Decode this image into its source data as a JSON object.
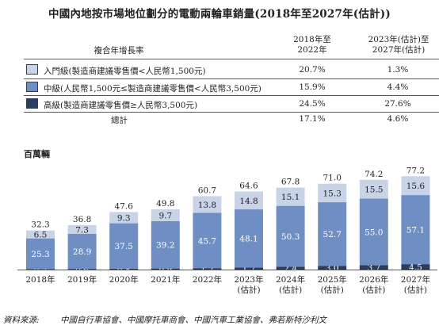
{
  "title": "中國內地按市場地位劃分的電動兩輪車銷量(2018年至2027年(估計))",
  "cagr_table": {
    "header_label": "複合年增長率",
    "col1_header": [
      "2018年至",
      "2022年"
    ],
    "col2_header": [
      "2023年(估計)至",
      "2027年(估計)"
    ],
    "rows": [
      {
        "label": "入門級(製造商建議零售價<人民幣1,500元)",
        "v1": "20.7%",
        "v2": "1.3%",
        "color": "#c8d3e8"
      },
      {
        "label": "中級(人民幣1,500元≤製造商建議零售價<人民幣3,500元)",
        "v1": "15.9%",
        "v2": "4.4%",
        "color": "#6f8fc4"
      },
      {
        "label": "高級(製造商建議零售價≥人民幣3,500元)",
        "v1": "24.5%",
        "v2": "27.6%",
        "color": "#2b3d5e"
      }
    ],
    "total": {
      "label": "總計",
      "v1": "17.1%",
      "v2": "4.6%"
    }
  },
  "unit_label": "百萬輛",
  "chart_data": {
    "type": "bar",
    "stacked": true,
    "categories": [
      "2018年",
      "2019年",
      "2020年",
      "2021年",
      "2022年",
      "2023年(估計)",
      "2024年(估計)",
      "2025年(估計)",
      "2026年(估計)",
      "2027年(估計)"
    ],
    "category_lines": [
      [
        "2018年"
      ],
      [
        "2019年"
      ],
      [
        "2020年"
      ],
      [
        "2021年"
      ],
      [
        "2022年"
      ],
      [
        "2023年",
        "(估計)"
      ],
      [
        "2024年",
        "(估計)"
      ],
      [
        "2025年",
        "(估計)"
      ],
      [
        "2026年",
        "(估計)"
      ],
      [
        "2027年",
        "(估計)"
      ]
    ],
    "series": [
      {
        "name": "高級",
        "values": [
          0.5,
          0.6,
          0.8,
          0.9,
          1.2,
          1.7,
          2.4,
          3.0,
          3.7,
          4.5
        ],
        "color": "#2b3d5e",
        "label_color": "#ffffff"
      },
      {
        "name": "中級",
        "values": [
          25.3,
          28.9,
          37.5,
          39.2,
          45.7,
          48.1,
          50.3,
          52.7,
          55.0,
          57.1
        ],
        "color": "#6f8fc4",
        "label_color": "#ffffff"
      },
      {
        "name": "入門級",
        "values": [
          6.5,
          7.3,
          9.3,
          9.7,
          13.8,
          14.8,
          15.1,
          15.3,
          15.5,
          15.6
        ],
        "color": "#c8d3e8",
        "label_color": "#222222"
      }
    ],
    "totals": [
      32.3,
      36.8,
      47.6,
      49.8,
      60.7,
      64.6,
      67.8,
      71.0,
      74.2,
      77.2
    ],
    "ylim": [
      0,
      80
    ]
  },
  "source": {
    "label": "資料來源:",
    "text": "中國自行車協會、中國摩托車商會、中國汽車工業協會、弗若斯特沙利文"
  }
}
